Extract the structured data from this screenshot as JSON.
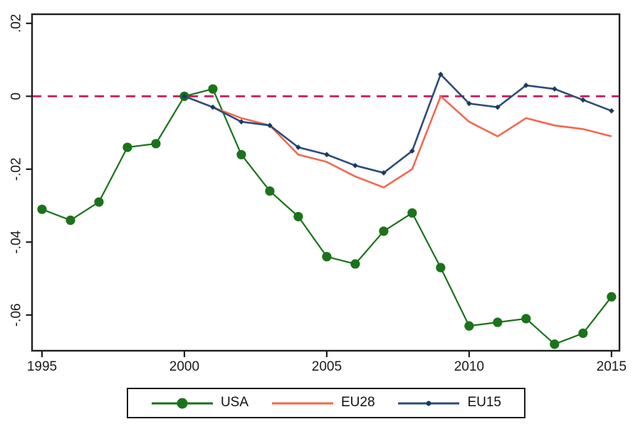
{
  "chart_data": {
    "type": "line",
    "title": "",
    "xlabel": "",
    "ylabel": "",
    "x": [
      1995,
      1996,
      1997,
      1998,
      1999,
      2000,
      2001,
      2002,
      2003,
      2004,
      2005,
      2006,
      2007,
      2008,
      2009,
      2010,
      2011,
      2012,
      2013,
      2014,
      2015
    ],
    "series": [
      {
        "name": "USA",
        "color": "#1a731a",
        "marker": "filled-circle",
        "marker_color": "#1a731a",
        "values": [
          -0.031,
          -0.034,
          -0.029,
          -0.014,
          -0.013,
          0,
          0.002,
          -0.016,
          -0.026,
          -0.033,
          -0.044,
          -0.046,
          -0.037,
          -0.032,
          -0.047,
          -0.063,
          -0.062,
          -0.061,
          -0.068,
          -0.065,
          -0.055
        ]
      },
      {
        "name": "EU28",
        "color": "#f4684e",
        "marker": "none",
        "marker_color": "#f4684e",
        "values": [
          null,
          null,
          null,
          null,
          null,
          0,
          -0.003,
          -0.006,
          -0.008,
          -0.016,
          -0.018,
          -0.022,
          -0.025,
          -0.02,
          0,
          -0.007,
          -0.011,
          -0.006,
          -0.008,
          -0.009,
          -0.011
        ]
      },
      {
        "name": "EU15",
        "color": "#2b4e7b",
        "marker": "small-diamond",
        "marker_color": "#1b3a5e",
        "values": [
          null,
          null,
          null,
          null,
          null,
          0,
          -0.003,
          -0.007,
          -0.008,
          -0.014,
          -0.016,
          -0.019,
          -0.021,
          -0.015,
          0.006,
          -0.002,
          -0.003,
          0.003,
          0.002,
          -0.001,
          -0.004
        ]
      }
    ],
    "x_ticks": [
      1995,
      2000,
      2005,
      2010,
      2015
    ],
    "x_tick_labels": [
      "1995",
      "2000",
      "2005",
      "2010",
      "2015"
    ],
    "y_ticks": [
      0.02,
      0,
      -0.02,
      -0.04,
      -0.06
    ],
    "y_tick_labels": [
      ".02",
      "0",
      "-.02",
      "-.04",
      "-.06"
    ],
    "xlim": [
      1994.65,
      2015.28
    ],
    "ylim": [
      -0.0698,
      0.0225
    ],
    "grid": false,
    "reference_line": {
      "y": 0,
      "color": "#cf1259",
      "style": "dashed"
    },
    "axis_color": "#1f1f1f",
    "tick_label_color": "#1a1a1a",
    "legend_position": "bottom-center"
  },
  "legend": {
    "entries": [
      "USA",
      "EU28",
      "EU15"
    ]
  }
}
